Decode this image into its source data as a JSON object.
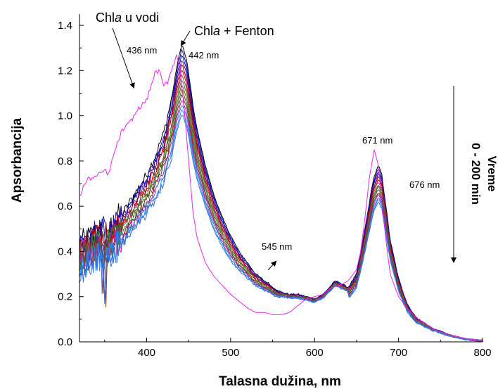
{
  "chart_data": {
    "type": "line",
    "xlabel": "Talasna dužina, nm",
    "ylabel": "Apsorbancija",
    "xlim": [
      320,
      800
    ],
    "ylim": [
      0.0,
      1.45
    ],
    "x_ticks": [
      400,
      500,
      600,
      700,
      800
    ],
    "x_tick_labels": [
      "400",
      "500",
      "600",
      "700",
      "800"
    ],
    "y_ticks": [
      0.0,
      0.2,
      0.4,
      0.6,
      0.8,
      1.0,
      1.2,
      1.4
    ],
    "y_tick_labels": [
      "0.0",
      "0.2",
      "0.4",
      "0.6",
      "0.8",
      "1.0",
      "1.2",
      "1.4"
    ],
    "grid": false,
    "legend": "none",
    "reference_series": {
      "label": "Chla u vodi",
      "color": "#ee22ee",
      "points": [
        [
          320,
          0.64
        ],
        [
          325,
          0.69
        ],
        [
          330,
          0.72
        ],
        [
          340,
          0.73
        ],
        [
          350,
          0.76
        ],
        [
          355,
          0.74
        ],
        [
          360,
          0.82
        ],
        [
          370,
          0.93
        ],
        [
          380,
          0.97
        ],
        [
          390,
          1.03
        ],
        [
          400,
          1.07
        ],
        [
          405,
          1.13
        ],
        [
          410,
          1.19
        ],
        [
          415,
          1.2
        ],
        [
          420,
          1.13
        ],
        [
          425,
          1.15
        ],
        [
          430,
          1.21
        ],
        [
          436,
          1.27
        ],
        [
          440,
          1.2
        ],
        [
          445,
          1.02
        ],
        [
          450,
          0.8
        ],
        [
          455,
          0.58
        ],
        [
          460,
          0.46
        ],
        [
          470,
          0.35
        ],
        [
          480,
          0.29
        ],
        [
          490,
          0.25
        ],
        [
          500,
          0.21
        ],
        [
          510,
          0.18
        ],
        [
          520,
          0.15
        ],
        [
          530,
          0.13
        ],
        [
          540,
          0.13
        ],
        [
          550,
          0.12
        ],
        [
          560,
          0.12
        ],
        [
          570,
          0.13
        ],
        [
          580,
          0.16
        ],
        [
          590,
          0.19
        ],
        [
          600,
          0.2
        ],
        [
          610,
          0.21
        ],
        [
          620,
          0.24
        ],
        [
          630,
          0.25
        ],
        [
          640,
          0.27
        ],
        [
          650,
          0.32
        ],
        [
          655,
          0.4
        ],
        [
          660,
          0.55
        ],
        [
          665,
          0.72
        ],
        [
          671,
          0.85
        ],
        [
          676,
          0.78
        ],
        [
          680,
          0.62
        ],
        [
          685,
          0.45
        ],
        [
          690,
          0.3
        ],
        [
          700,
          0.2
        ],
        [
          710,
          0.15
        ],
        [
          720,
          0.11
        ],
        [
          740,
          0.06
        ],
        [
          760,
          0.03
        ],
        [
          780,
          0.015
        ],
        [
          800,
          0.005
        ]
      ]
    },
    "fenton_series": {
      "label": "Chla + Fenton",
      "colors": [
        "#000000",
        "#1a1a80",
        "#0000cc",
        "#6a0dad",
        "#800000",
        "#cc0000",
        "#b03060",
        "#228b22",
        "#556b2f",
        "#8b4513",
        "#2f4f4f",
        "#c71585",
        "#4169e1",
        "#1e90ff",
        "#3a6fc4"
      ],
      "peak_blue_max": 1.32,
      "peak_blue_min": 1.01,
      "peak_red_max": 0.78,
      "peak_red_min": 0.62,
      "base_points": [
        [
          320,
          0.42
        ],
        [
          330,
          0.45
        ],
        [
          340,
          0.48
        ],
        [
          350,
          0.5
        ],
        [
          355,
          0.49
        ],
        [
          360,
          0.52
        ],
        [
          370,
          0.56
        ],
        [
          380,
          0.62
        ],
        [
          390,
          0.68
        ],
        [
          400,
          0.74
        ],
        [
          410,
          0.82
        ],
        [
          420,
          0.92
        ],
        [
          430,
          1.08
        ],
        [
          436,
          1.22
        ],
        [
          442,
          1.32
        ],
        [
          448,
          1.24
        ],
        [
          455,
          1.05
        ],
        [
          460,
          0.94
        ],
        [
          470,
          0.78
        ],
        [
          480,
          0.65
        ],
        [
          490,
          0.55
        ],
        [
          500,
          0.47
        ],
        [
          510,
          0.4
        ],
        [
          520,
          0.35
        ],
        [
          530,
          0.3
        ],
        [
          540,
          0.27
        ],
        [
          545,
          0.26
        ],
        [
          550,
          0.24
        ],
        [
          560,
          0.22
        ],
        [
          570,
          0.21
        ],
        [
          580,
          0.21
        ],
        [
          590,
          0.2
        ],
        [
          600,
          0.19
        ],
        [
          610,
          0.21
        ],
        [
          620,
          0.25
        ],
        [
          625,
          0.27
        ],
        [
          630,
          0.26
        ],
        [
          640,
          0.24
        ],
        [
          650,
          0.3
        ],
        [
          660,
          0.5
        ],
        [
          670,
          0.72
        ],
        [
          676,
          0.78
        ],
        [
          680,
          0.74
        ],
        [
          685,
          0.6
        ],
        [
          690,
          0.45
        ],
        [
          700,
          0.28
        ],
        [
          710,
          0.17
        ],
        [
          720,
          0.11
        ],
        [
          740,
          0.06
        ],
        [
          760,
          0.03
        ],
        [
          780,
          0.012
        ],
        [
          800,
          0.004
        ]
      ]
    },
    "annotations": [
      {
        "text": "Chla u vodi"
      },
      {
        "text": "Chla + Fenton"
      },
      {
        "text": "436 nm"
      },
      {
        "text": "442 nm"
      },
      {
        "text": "545 nm"
      },
      {
        "text": "671 nm"
      },
      {
        "text": "676 nm"
      }
    ]
  },
  "side_label": {
    "line1": "Vreme",
    "line2": "0 - 200 min"
  },
  "labels": {
    "chl_water_prefix": "Chl",
    "chl_water_italic": "a",
    "chl_water_suffix": " u vodi",
    "chl_fenton_prefix": "Chl",
    "chl_fenton_italic": "a",
    "chl_fenton_suffix": " + Fenton",
    "nm436": "436 nm",
    "nm442": "442 nm",
    "nm545": "545 nm",
    "nm671": "671 nm",
    "nm676": "676 nm"
  }
}
